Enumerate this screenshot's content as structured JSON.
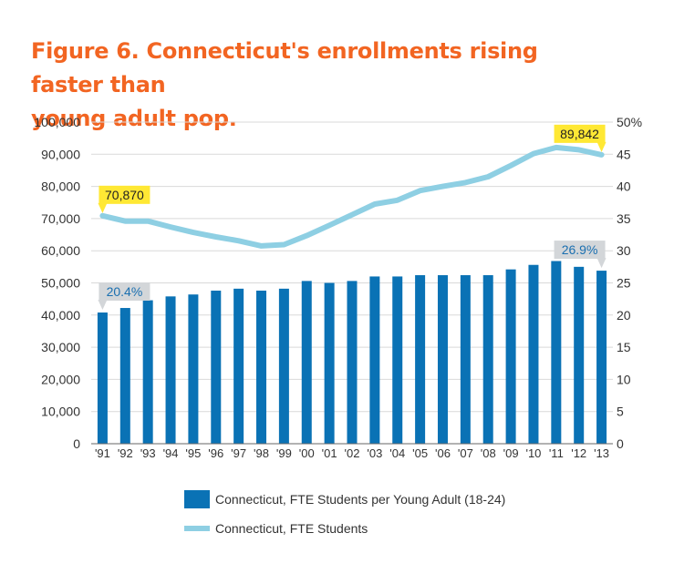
{
  "title_line1": "Figure 6. Connecticut's enrollments rising faster than",
  "title_line2": "young adult pop.",
  "colors": {
    "bar": "#0a72b5",
    "line": "#8ecfe3",
    "title": "#f26522",
    "callout_yellow": "#ffe834",
    "callout_gray": "#d3d6d9",
    "callout_text_blue": "#1a6fb0"
  },
  "chart_data": {
    "type": "bar+line",
    "categories": [
      "'91",
      "'92",
      "'93",
      "'94",
      "'95",
      "'96",
      "'97",
      "'98",
      "'99",
      "'00",
      "'01",
      "'02",
      "'03",
      "'04",
      "'05",
      "'06",
      "'07",
      "'08",
      "'09",
      "'10",
      "'11",
      "'12",
      "'13"
    ],
    "series": [
      {
        "name": "Connecticut, FTE Students per Young Adult (18-24)",
        "type": "bar",
        "axis": "right",
        "unit": "%",
        "values": [
          20.4,
          21.1,
          22.3,
          22.9,
          23.2,
          23.8,
          24.1,
          23.8,
          24.1,
          25.3,
          25.0,
          25.3,
          26.0,
          26.0,
          26.2,
          26.2,
          26.2,
          26.2,
          27.1,
          27.8,
          28.4,
          27.5,
          26.9
        ]
      },
      {
        "name": "Connecticut, FTE Students",
        "type": "line",
        "axis": "left",
        "values": [
          70870,
          69200,
          69200,
          67400,
          65700,
          64300,
          63100,
          61500,
          61900,
          64700,
          67900,
          71200,
          74500,
          75700,
          78700,
          80000,
          81200,
          83000,
          86500,
          90200,
          92100,
          91400,
          89842
        ]
      }
    ],
    "y_left": {
      "min": 0,
      "max": 100000,
      "ticks": [
        "100,000",
        "90,000",
        "80,000",
        "70,000",
        "60,000",
        "50,000",
        "40,000",
        "30,000",
        "20,000",
        "10,000",
        "0"
      ]
    },
    "y_right": {
      "min": 0,
      "max": 50,
      "ticks": [
        "50%",
        "45",
        "40",
        "35",
        "30",
        "25",
        "20",
        "15",
        "10",
        "5",
        "0"
      ]
    },
    "annotations": [
      {
        "label": "70,870",
        "series": 1,
        "index": 0,
        "style": "yellow"
      },
      {
        "label": "89,842",
        "series": 1,
        "index": 22,
        "style": "yellow"
      },
      {
        "label": "20.4%",
        "series": 0,
        "index": 0,
        "style": "gray"
      },
      {
        "label": "26.9%",
        "series": 0,
        "index": 22,
        "style": "gray"
      }
    ],
    "grid": true,
    "legend_position": "bottom"
  }
}
